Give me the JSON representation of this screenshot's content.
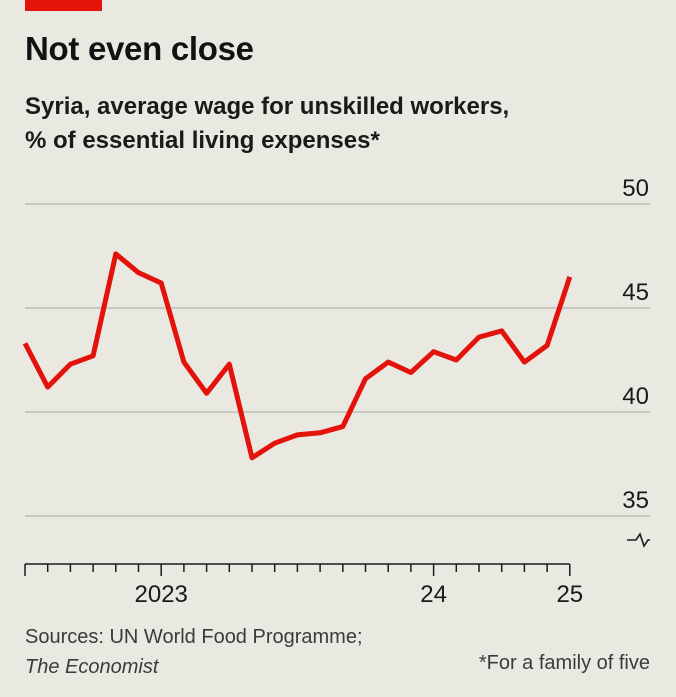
{
  "title": "Not even close",
  "subtitle_line1": "Syria, average wage for unskilled workers,",
  "subtitle_line2": "% of essential living expenses*",
  "sources": "Sources: UN World Food Programme;",
  "sources_publication": "The Economist",
  "footnote": "*For a family of five",
  "colors": {
    "line": "#e3120b",
    "background": "#e9e8e1",
    "grid": "#b5b4ae",
    "brand": "#e3120b"
  },
  "chart_data": {
    "type": "line",
    "title": "Not even close",
    "subtitle": "Syria, average wage for unskilled workers, % of essential living expenses*",
    "x_unit": "monthly, Jun 2022 – Jan 2025",
    "x_tick_labels": [
      {
        "month_index": 6,
        "label": "2023"
      },
      {
        "month_index": 18,
        "label": "24"
      },
      {
        "month_index": 24,
        "label": "25"
      }
    ],
    "ylim": [
      35,
      50
    ],
    "y_ticks": [
      50,
      45,
      40,
      35
    ],
    "y_axis_break": true,
    "grid": true,
    "series": [
      {
        "values": [
          {
            "month": "2022-06",
            "y": 43.3
          },
          {
            "month": "2022-07",
            "y": 41.2
          },
          {
            "month": "2022-08",
            "y": 42.3
          },
          {
            "month": "2022-09",
            "y": 42.7
          },
          {
            "month": "2022-10",
            "y": 47.6
          },
          {
            "month": "2022-11",
            "y": 46.7
          },
          {
            "month": "2022-12",
            "y": 46.2
          },
          {
            "month": "2023-01",
            "y": 42.4
          },
          {
            "month": "2023-02",
            "y": 40.9
          },
          {
            "month": "2023-03",
            "y": 42.3
          },
          {
            "month": "2023-04",
            "y": 37.8
          },
          {
            "month": "2023-05",
            "y": 38.5
          },
          {
            "month": "2023-06",
            "y": 38.9
          },
          {
            "month": "2023-07",
            "y": 39.0
          },
          {
            "month": "2023-08",
            "y": 39.3
          },
          {
            "month": "2023-09",
            "y": 41.6
          },
          {
            "month": "2023-10",
            "y": 42.4
          },
          {
            "month": "2023-11",
            "y": 41.9
          },
          {
            "month": "2023-12",
            "y": 42.9
          },
          {
            "month": "2024-01",
            "y": 42.5
          },
          {
            "month": "2024-02",
            "y": 43.6
          },
          {
            "month": "2024-03",
            "y": 43.9
          },
          {
            "month": "2024-04",
            "y": 42.4
          },
          {
            "month": "2024-05",
            "y": 43.2
          },
          {
            "month": "2024-06",
            "y": 46.5
          }
        ]
      }
    ]
  }
}
